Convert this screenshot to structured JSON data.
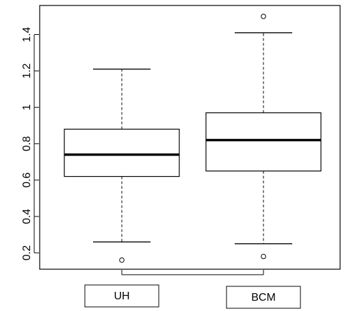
{
  "chart_data": {
    "type": "box",
    "categories": [
      "UH",
      "BCM"
    ],
    "boxes": [
      {
        "whisker_low": 0.26,
        "q1": 0.62,
        "median": 0.74,
        "q3": 0.88,
        "whisker_high": 1.21,
        "outliers": [
          0.16
        ]
      },
      {
        "whisker_low": 0.25,
        "q1": 0.65,
        "median": 0.82,
        "q3": 0.97,
        "whisker_high": 1.41,
        "outliers": [
          1.5,
          0.18
        ]
      }
    ],
    "ylim": [
      0.11,
      1.56
    ],
    "yticks": [
      0.2,
      0.4,
      0.6,
      0.8,
      1.0,
      1.2,
      1.4
    ],
    "color": "#000000"
  }
}
